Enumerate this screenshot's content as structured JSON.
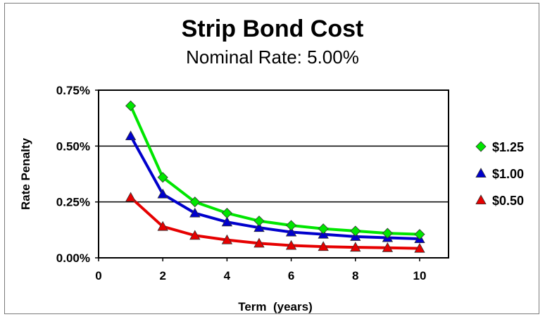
{
  "chart_data": {
    "type": "line",
    "title": "Strip Bond Cost",
    "subtitle": "Nominal Rate: 5.00%",
    "xlabel": "Term  (years)",
    "ylabel": "Rate Penalty",
    "x": [
      1,
      2,
      3,
      4,
      5,
      6,
      7,
      8,
      9,
      10
    ],
    "xlim": [
      0,
      10.9
    ],
    "ylim": [
      0,
      0.75
    ],
    "x_ticks": [
      0,
      2,
      4,
      6,
      8,
      10
    ],
    "x_tick_labels": [
      "0",
      "2",
      "4",
      "6",
      "8",
      "10"
    ],
    "y_ticks": [
      0,
      0.25,
      0.5,
      0.75
    ],
    "y_tick_labels": [
      "0.00%",
      "0.25%",
      "0.50%",
      "0.75%"
    ],
    "grid": "horizontal",
    "legend_position": "right",
    "series": [
      {
        "name": "$1.25",
        "color": "#00e600",
        "marker": "diamond",
        "values": [
          0.68,
          0.36,
          0.25,
          0.2,
          0.165,
          0.145,
          0.13,
          0.12,
          0.11,
          0.105
        ]
      },
      {
        "name": "$1.00",
        "color": "#0000cc",
        "marker": "triangle",
        "values": [
          0.545,
          0.285,
          0.2,
          0.16,
          0.135,
          0.115,
          0.105,
          0.095,
          0.09,
          0.085
        ]
      },
      {
        "name": "$0.50",
        "color": "#e60000",
        "marker": "triangle",
        "values": [
          0.27,
          0.14,
          0.1,
          0.08,
          0.065,
          0.055,
          0.05,
          0.047,
          0.045,
          0.042
        ]
      }
    ]
  }
}
